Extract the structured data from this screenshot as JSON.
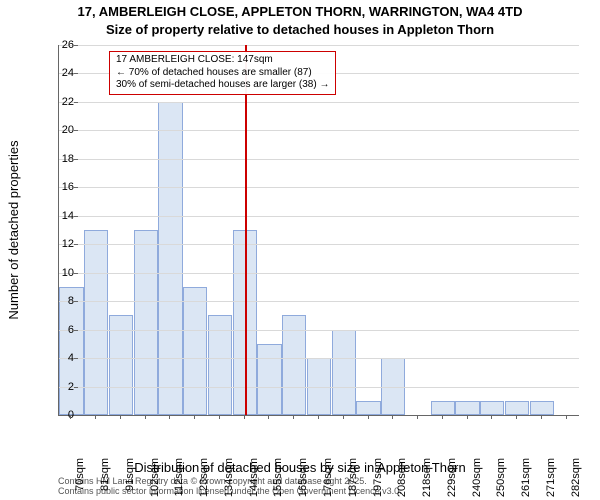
{
  "chart": {
    "type": "histogram",
    "title_line1": "17, AMBERLEIGH CLOSE, APPLETON THORN, WARRINGTON, WA4 4TD",
    "title_line2": "Size of property relative to detached houses in Appleton Thorn",
    "title_fontsize": 13,
    "xlabel": "Distribution of detached houses by size in Appleton Thorn",
    "ylabel": "Number of detached properties",
    "axis_label_fontsize": 13,
    "tick_fontsize": 11,
    "background_color": "#ffffff",
    "grid_color": "#d9d9d9",
    "axis_color": "#666666",
    "bar_fill": "#dbe6f4",
    "bar_border": "#8faadc",
    "bar_border_width": 1,
    "ref_line_color": "#cc0000",
    "annotation_border": "#cc0000",
    "ylim": [
      0,
      26
    ],
    "ytick_step": 2,
    "x_categories": [
      "70sqm",
      "81sqm",
      "91sqm",
      "102sqm",
      "112sqm",
      "123sqm",
      "134sqm",
      "144sqm",
      "155sqm",
      "165sqm",
      "176sqm",
      "187sqm",
      "197sqm",
      "208sqm",
      "218sqm",
      "229sqm",
      "240sqm",
      "250sqm",
      "261sqm",
      "271sqm",
      "282sqm"
    ],
    "values": [
      9,
      13,
      7,
      13,
      22,
      9,
      7,
      13,
      5,
      7,
      4,
      6,
      1,
      4,
      0,
      1,
      1,
      1,
      1,
      1,
      0
    ],
    "reference_value_sqm": 147,
    "x_min_sqm": 70,
    "x_max_sqm": 285,
    "annotation_line1": "17 AMBERLEIGH CLOSE: 147sqm",
    "annotation_line2": "← 70% of detached houses are smaller (87)",
    "annotation_line3": "30% of semi-detached houses are larger (38) →",
    "annotation_fontsize": 10,
    "footer_line1": "Contains HM Land Registry data © Crown copyright and database right 2025.",
    "footer_line2": "Contains public sector information licensed under the Open Government Licence v3.0.",
    "footer_fontsize": 9
  }
}
